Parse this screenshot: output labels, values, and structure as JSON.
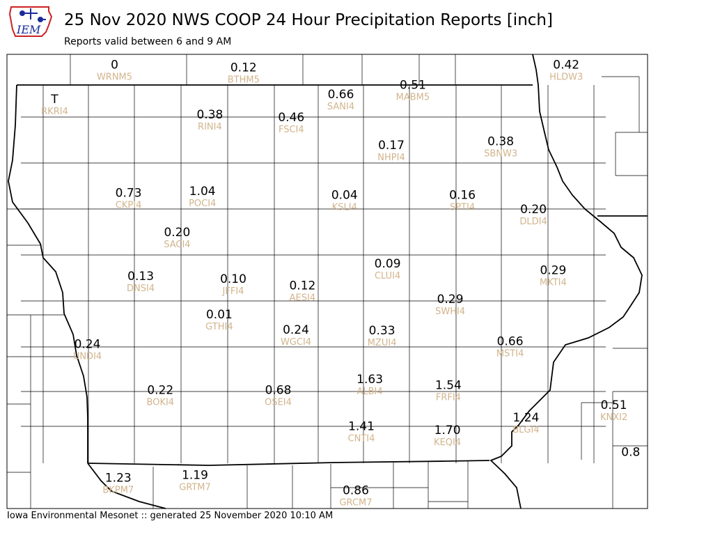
{
  "header": {
    "title": "25 Nov 2020 NWS COOP 24 Hour Precipitation Reports [inch]",
    "subtitle": "Reports valid between 6 and 9 AM",
    "logo_text": "IEM"
  },
  "footer": {
    "text": "Iowa Environmental Mesonet :: generated 25 November 2020 10:10 AM"
  },
  "colors": {
    "station_id": "#d2b48c",
    "value": "#000000",
    "county_line": "#000000",
    "logo_red": "#cc2222",
    "logo_blue": "#1a2b9a"
  },
  "stations": [
    {
      "id": "WRNM5",
      "value": "0",
      "lon": -95.65,
      "lat": 43.75
    },
    {
      "id": "BTHM5",
      "value": "0.12",
      "lon": -94.27,
      "lat": 43.72
    },
    {
      "id": "HLDW3",
      "value": "0.42",
      "lon": -90.82,
      "lat": 43.75
    },
    {
      "id": "MABM5",
      "value": "0.51",
      "lon": -92.46,
      "lat": 43.54
    },
    {
      "id": "RKRI4",
      "value": "T",
      "lon": -96.29,
      "lat": 43.39
    },
    {
      "id": "SANI4",
      "value": "0.66",
      "lon": -93.23,
      "lat": 43.44
    },
    {
      "id": "RINI4",
      "value": "0.38",
      "lon": -94.63,
      "lat": 43.23
    },
    {
      "id": "FSCI4",
      "value": "0.46",
      "lon": -93.76,
      "lat": 43.2
    },
    {
      "id": "SBNW3",
      "value": "0.38",
      "lon": -91.52,
      "lat": 42.95
    },
    {
      "id": "NHPI4",
      "value": "0.17",
      "lon": -92.69,
      "lat": 42.91
    },
    {
      "id": "CKPI4",
      "value": "0.73",
      "lon": -95.5,
      "lat": 42.41
    },
    {
      "id": "POCI4",
      "value": "1.04",
      "lon": -94.71,
      "lat": 42.43
    },
    {
      "id": "KSLI4",
      "value": "0.04",
      "lon": -93.19,
      "lat": 42.39
    },
    {
      "id": "SPTI4",
      "value": "0.16",
      "lon": -91.93,
      "lat": 42.39
    },
    {
      "id": "DLDI4",
      "value": "0.20",
      "lon": -91.17,
      "lat": 42.24
    },
    {
      "id": "SACI4",
      "value": "0.20",
      "lon": -94.98,
      "lat": 42.0
    },
    {
      "id": "DNSI4",
      "value": "0.13",
      "lon": -95.37,
      "lat": 41.54
    },
    {
      "id": "JFFI4",
      "value": "0.10",
      "lon": -94.38,
      "lat": 41.51
    },
    {
      "id": "CLUI4",
      "value": "0.09",
      "lon": -92.73,
      "lat": 41.67
    },
    {
      "id": "MKTI4",
      "value": "0.29",
      "lon": -90.96,
      "lat": 41.6
    },
    {
      "id": "AESI4",
      "value": "0.12",
      "lon": -93.64,
      "lat": 41.44
    },
    {
      "id": "SWHI4",
      "value": "0.29",
      "lon": -92.06,
      "lat": 41.3
    },
    {
      "id": "GTHI4",
      "value": "0.01",
      "lon": -94.53,
      "lat": 41.14
    },
    {
      "id": "WGCI4",
      "value": "0.24",
      "lon": -93.71,
      "lat": 40.98
    },
    {
      "id": "MZUI4",
      "value": "0.33",
      "lon": -92.79,
      "lat": 40.97
    },
    {
      "id": "UNDI4",
      "value": "0.24",
      "lon": -95.94,
      "lat": 40.83
    },
    {
      "id": "MSTI4",
      "value": "0.66",
      "lon": -91.42,
      "lat": 40.86
    },
    {
      "id": "BOKI4",
      "value": "0.22",
      "lon": -95.16,
      "lat": 40.35
    },
    {
      "id": "OSEI4",
      "value": "0.68",
      "lon": -93.9,
      "lat": 40.35
    },
    {
      "id": "ALBI4",
      "value": "1.63",
      "lon": -92.92,
      "lat": 40.46
    },
    {
      "id": "FRFI4",
      "value": "1.54",
      "lon": -92.08,
      "lat": 40.4
    },
    {
      "id": "KNXI2",
      "value": "0.51",
      "lon": -90.31,
      "lat": 40.19
    },
    {
      "id": "BLGI4",
      "value": "1.24",
      "lon": -91.25,
      "lat": 40.06
    },
    {
      "id": "CNTI4",
      "value": "1.41",
      "lon": -93.01,
      "lat": 39.97
    },
    {
      "id": "KEQI4",
      "value": "1.70",
      "lon": -92.09,
      "lat": 39.93
    },
    {
      "id": "BKPM7",
      "value": "1.23",
      "lon": -95.61,
      "lat": 39.43
    },
    {
      "id": "GRTM7",
      "value": "1.19",
      "lon": -94.79,
      "lat": 39.46
    },
    {
      "id": "GRCM7",
      "value": "0.86",
      "lon": -93.07,
      "lat": 39.3
    },
    {
      "id": "",
      "value": "0.8",
      "lon": -90.13,
      "lat": 39.7
    }
  ]
}
